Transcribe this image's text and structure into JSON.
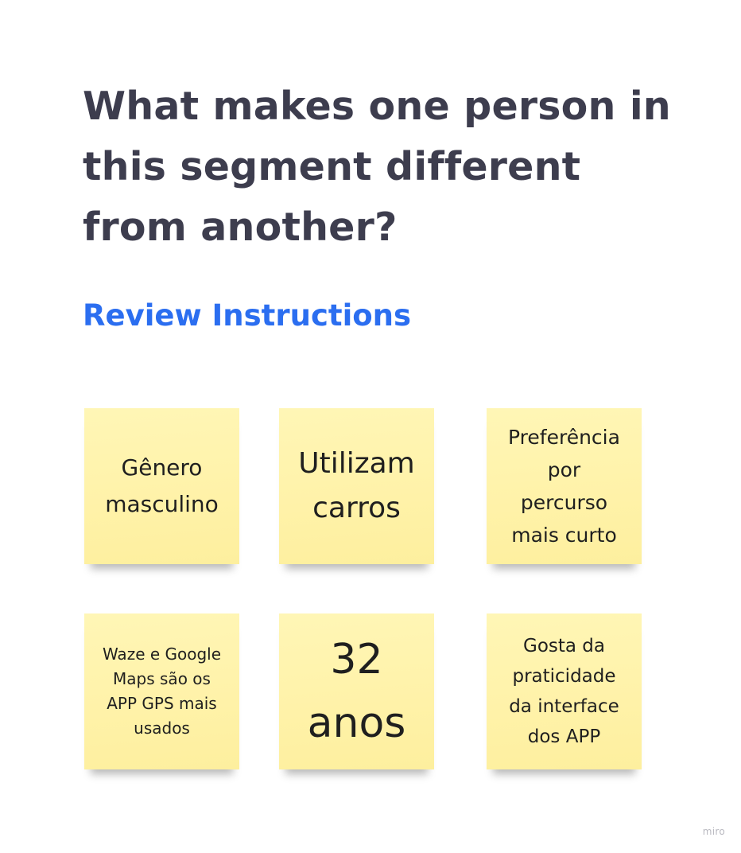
{
  "board": {
    "question": "What makes one person in this segment different from another?",
    "review_link": "Review Instructions",
    "watermark": "miro"
  },
  "sticky_notes": [
    {
      "text": "Gênero\nmasculino",
      "color": "#fff4ac"
    },
    {
      "text": "Utilizam\ncarros",
      "color": "#fff4ac"
    },
    {
      "text": "Preferência\npor\npercurso\nmais curto",
      "color": "#fff4ac"
    },
    {
      "text": "Waze e Google\nMaps são os\nAPP GPS mais\nusados",
      "color": "#fff4ac"
    },
    {
      "text": "32\nanos",
      "color": "#fff4ac"
    },
    {
      "text": "Gosta da\npraticidade\nda interface\ndos APP",
      "color": "#fff4ac"
    }
  ],
  "colors": {
    "question_text": "#3d3d4e",
    "link": "#2b6ef0",
    "sticky_note": "#fff4ac",
    "background": "#ffffff"
  }
}
